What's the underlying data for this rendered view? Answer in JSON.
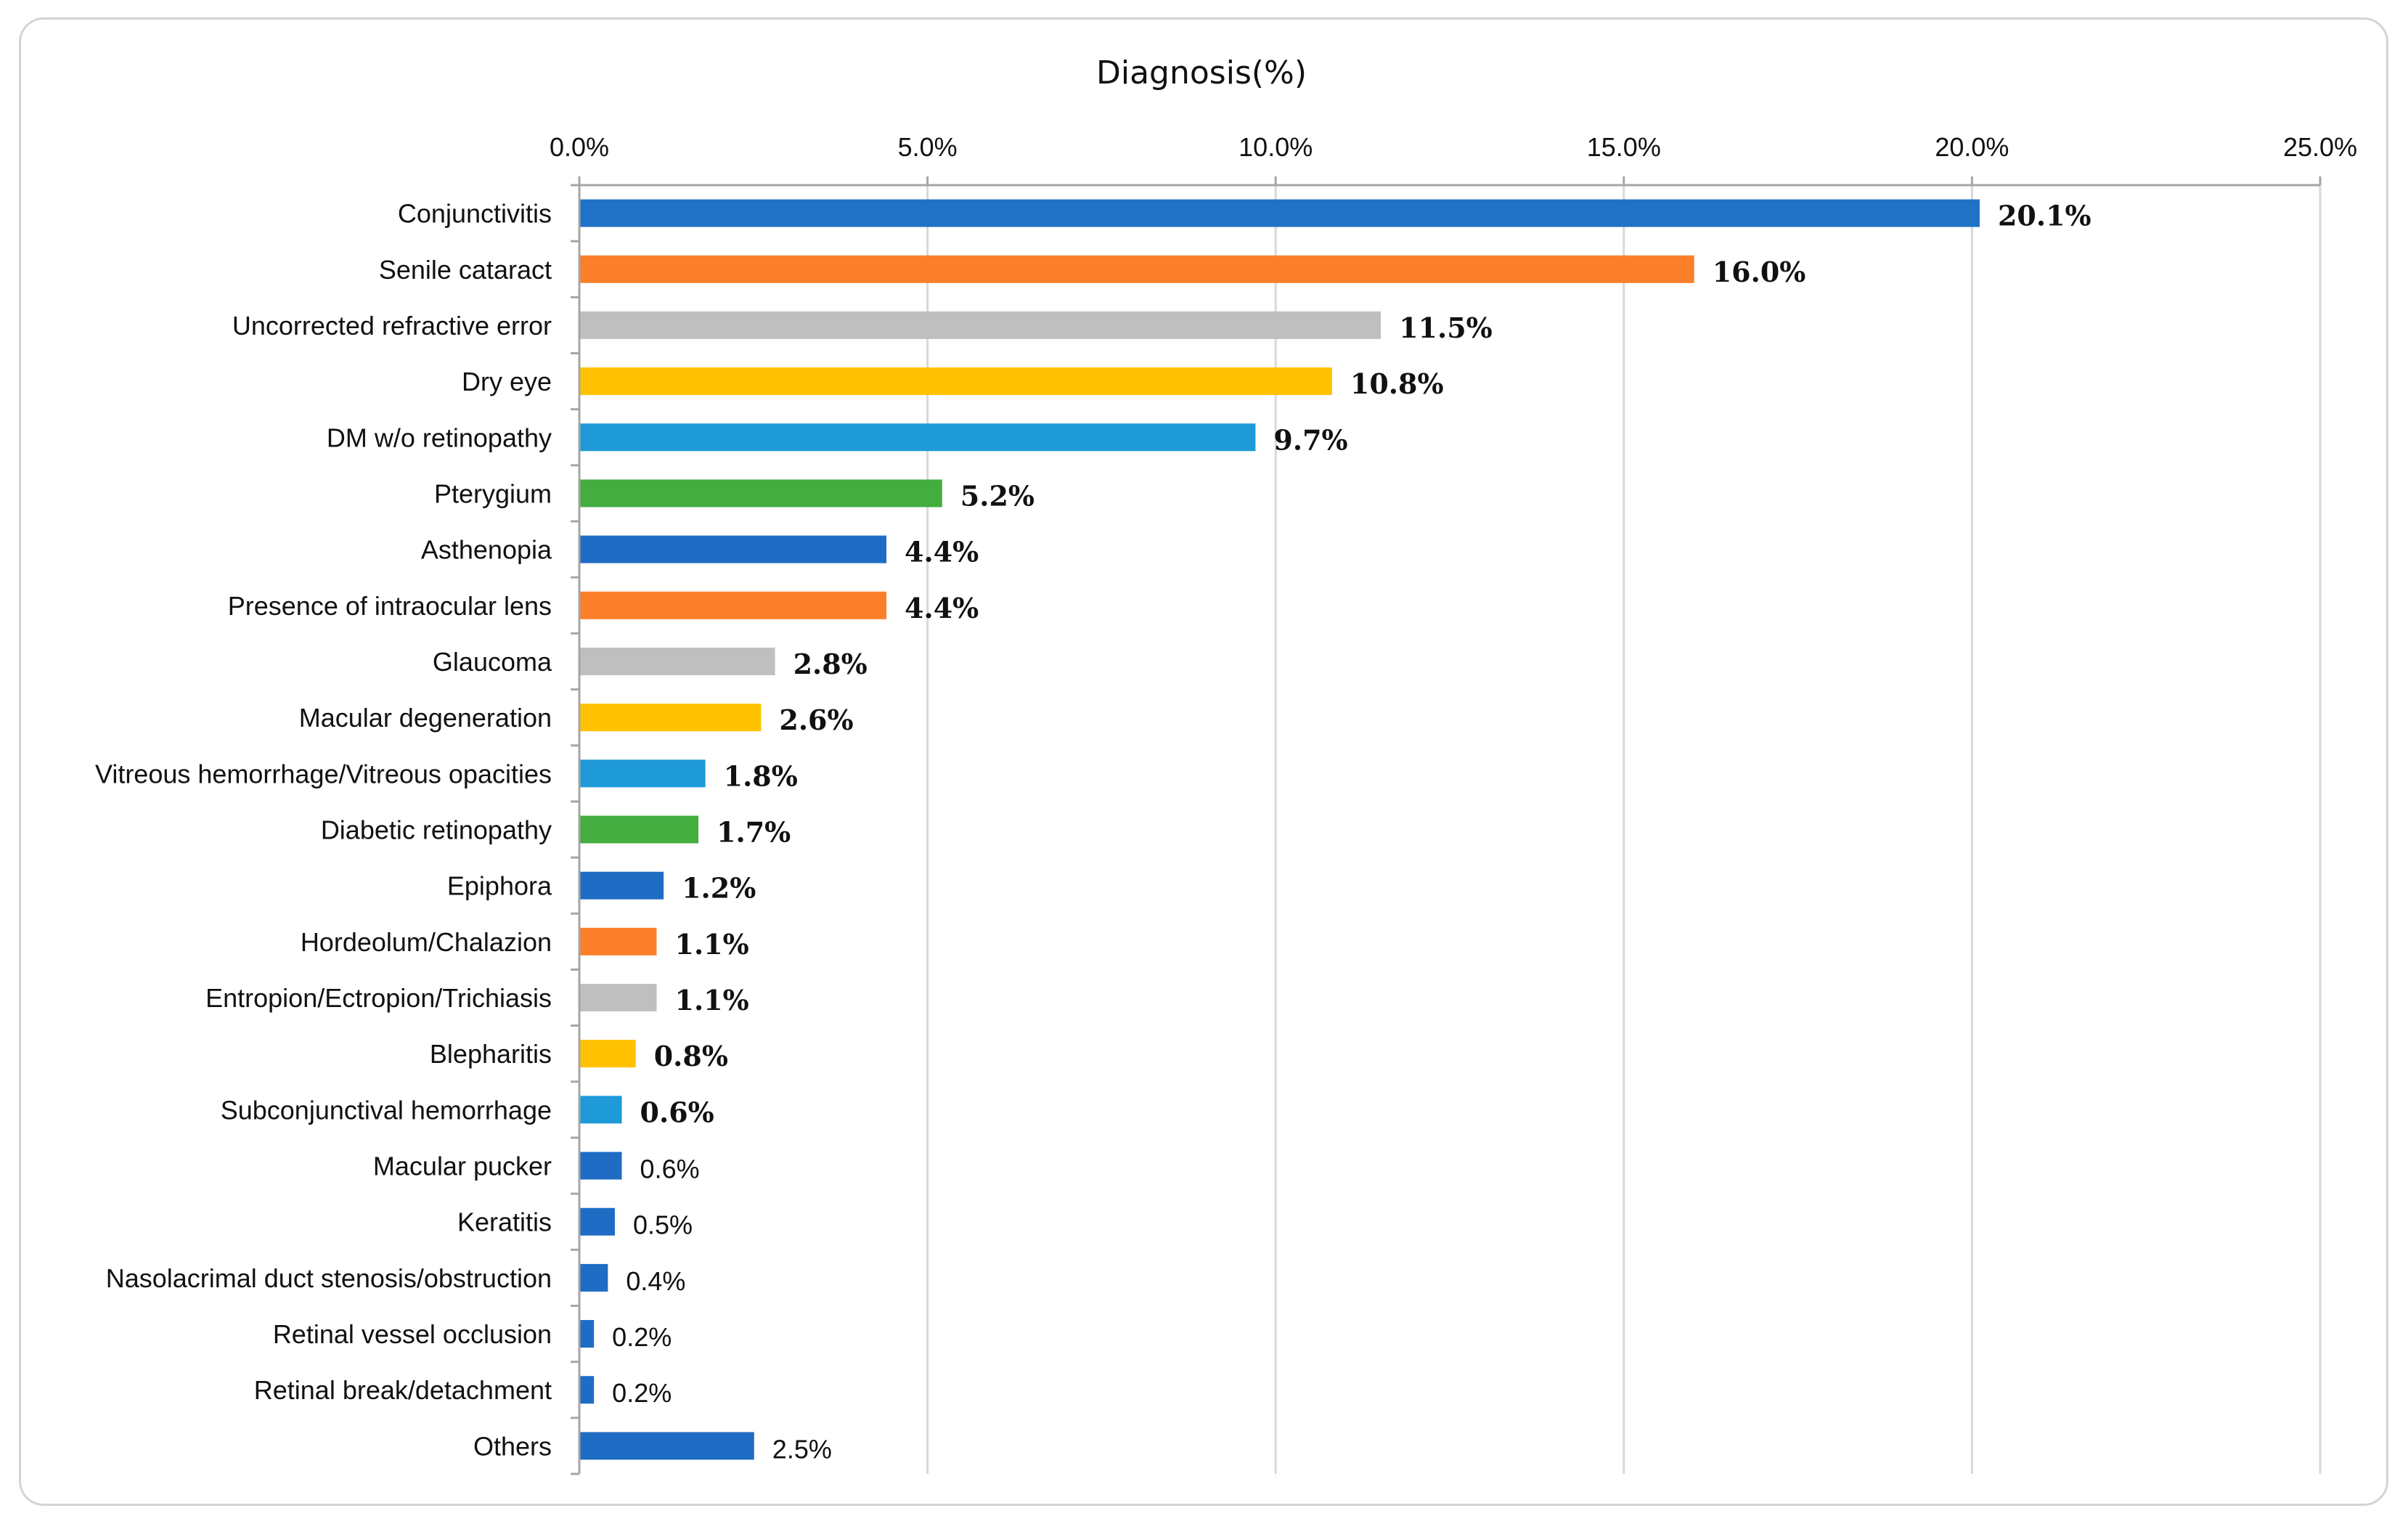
{
  "chart_data": {
    "type": "bar",
    "orientation": "horizontal",
    "title": "Diagnosis(%)",
    "xlabel": "",
    "ylabel": "",
    "xlim": [
      0,
      25
    ],
    "x_ticks": [
      "0.0%",
      "5.0%",
      "10.0%",
      "15.0%",
      "20.0%",
      "25.0%"
    ],
    "x_axis_position": "top",
    "grid": true,
    "categories": [
      "Conjunctivitis",
      "Senile cataract",
      "Uncorrected refractive error",
      "Dry eye",
      "DM w/o retinopathy",
      "Pterygium",
      "Asthenopia",
      "Presence of intraocular lens",
      "Glaucoma",
      "Macular degeneration",
      "Vitreous hemorrhage/Vitreous opacities",
      "Diabetic retinopathy",
      "Epiphora",
      "Hordeolum/Chalazion",
      "Entropion/Ectropion/Trichiasis",
      "Blepharitis",
      "Subconjunctival hemorrhage",
      "Macular pucker",
      "Keratitis",
      "Nasolacrimal duct stenosis/obstruction",
      "Retinal vessel occlusion",
      "Retinal break/detachment",
      "Others"
    ],
    "values": [
      20.1,
      16.0,
      11.5,
      10.8,
      9.7,
      5.2,
      4.4,
      4.4,
      2.8,
      2.6,
      1.8,
      1.7,
      1.2,
      1.1,
      1.1,
      0.8,
      0.6,
      0.6,
      0.5,
      0.4,
      0.2,
      0.2,
      2.5
    ],
    "labels": [
      "20.1%",
      "16.0%",
      "11.5%",
      "10.8%",
      "9.7%",
      "5.2%",
      "4.4%",
      "4.4%",
      "2.8%",
      "2.6%",
      "1.8%",
      "1.7%",
      "1.2%",
      "1.1%",
      "1.1%",
      "0.8%",
      "0.6%",
      "0.6%",
      "0.5%",
      "0.4%",
      "0.2%",
      "0.2%",
      "2.5%"
    ],
    "label_styles": [
      "bold",
      "bold",
      "bold",
      "bold",
      "bold",
      "bold",
      "bold",
      "bold",
      "bold",
      "bold",
      "bold",
      "bold",
      "bold",
      "bold",
      "bold",
      "bold",
      "bold",
      "plain",
      "plain",
      "plain",
      "plain",
      "plain",
      "plain"
    ],
    "colors": [
      "#1f72c6",
      "#fb7f28",
      "#bfbfbf",
      "#ffc100",
      "#1e9ad8",
      "#43ad3f",
      "#1f6cc4",
      "#fb7f28",
      "#bfbfbf",
      "#ffc100",
      "#1e9ad8",
      "#43ad3f",
      "#1f6cc4",
      "#fb7f28",
      "#bfbfbf",
      "#ffc100",
      "#1e9ad8",
      "#1f6cc4",
      "#1f6cc4",
      "#1f6cc4",
      "#1f6cc4",
      "#1f6cc4",
      "#1f6cc4"
    ],
    "gridline_color": "#d9d9d9",
    "axis_color": "#a6a6a6"
  }
}
